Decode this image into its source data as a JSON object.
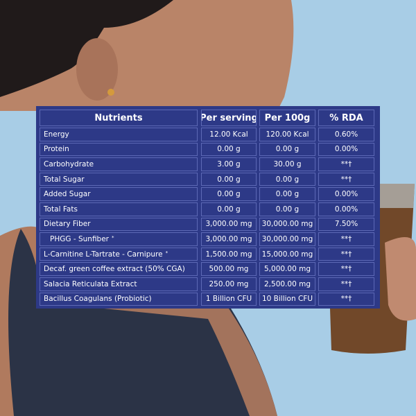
{
  "table": {
    "header": [
      "Nutrients",
      "Per serving",
      "Per 100g",
      "% RDA"
    ],
    "rows": [
      {
        "nutrient": "Energy",
        "per_serving": "12.00 Kcal",
        "per_100g": "120.00 Kcal",
        "rda": "0.60%"
      },
      {
        "nutrient": "Protein",
        "per_serving": "0.00 g",
        "per_100g": "0.00 g",
        "rda": "0.00%"
      },
      {
        "nutrient": "Carbohydrate",
        "per_serving": "3.00 g",
        "per_100g": "30.00 g",
        "rda": "**†"
      },
      {
        "nutrient": "Total Sugar",
        "per_serving": "0.00 g",
        "per_100g": "0.00 g",
        "rda": "**†"
      },
      {
        "nutrient": "Added Sugar",
        "per_serving": "0.00 g",
        "per_100g": "0.00 g",
        "rda": "0.00%"
      },
      {
        "nutrient": "Total Fats",
        "per_serving": "0.00 g",
        "per_100g": "0.00 g",
        "rda": "0.00%"
      },
      {
        "nutrient": "Dietary Fiber",
        "per_serving": "3,000.00 mg",
        "per_100g": "30,000.00 mg",
        "rda": "7.50%"
      },
      {
        "nutrient": "PHGG - Sunfiber",
        "superscript": "*",
        "per_serving": "3,000.00 mg",
        "per_100g": "30,000.00 mg",
        "rda": "**†"
      },
      {
        "nutrient": "L-Carnitine L-Tartrate - Carnipure",
        "superscript": "*",
        "per_serving": "1,500.00 mg",
        "per_100g": "15,000.00 mg",
        "rda": "**†"
      },
      {
        "nutrient": "Decaf. green coffee extract (50% CGA)",
        "per_serving": "500.00 mg",
        "per_100g": "5,000.00 mg",
        "rda": "**†"
      },
      {
        "nutrient": "Salacia Reticulata Extract",
        "per_serving": "250.00 mg",
        "per_100g": "2,500.00 mg",
        "rda": "**†"
      },
      {
        "nutrient": "Bacillus Coagulans (Probiotic)",
        "per_serving": "1 Billion CFU",
        "per_100g": "10 Billion CFU",
        "rda": "**†"
      }
    ]
  }
}
